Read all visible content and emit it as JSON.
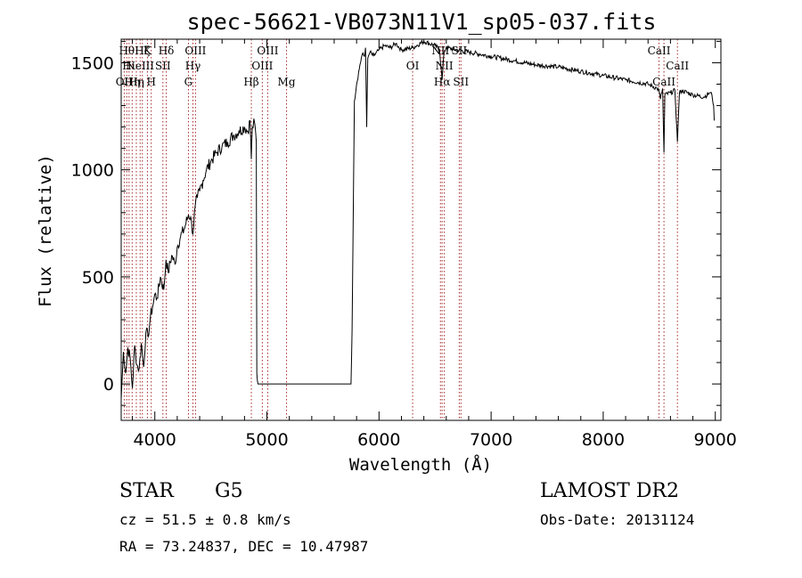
{
  "chart_data": {
    "type": "line",
    "title": "spec-56621-VB073N11V1_sp05-037.fits",
    "xlabel": "Wavelength (Å)",
    "ylabel": "Flux (relative)",
    "xlim": [
      3700,
      9050
    ],
    "ylim": [
      -170,
      1610
    ],
    "xticks": [
      4000,
      5000,
      6000,
      7000,
      8000,
      9000
    ],
    "yticks": [
      0,
      500,
      1000,
      1500
    ],
    "grid": false,
    "series": [
      {
        "color": "#000000",
        "x": [
          3700,
          3720,
          3740,
          3760,
          3780,
          3800,
          3820,
          3840,
          3860,
          3880,
          3900,
          3920,
          3940,
          3960,
          3980,
          4000,
          4020,
          4050,
          4080,
          4100,
          4120,
          4150,
          4180,
          4200,
          4230,
          4260,
          4300,
          4320,
          4340,
          4360,
          4380,
          4400,
          4430,
          4460,
          4500,
          4550,
          4600,
          4650,
          4700,
          4750,
          4800,
          4830,
          4850,
          4861,
          4870,
          4890,
          4905,
          4910,
          4920,
          4960,
          5200,
          5500,
          5750,
          5760,
          5780,
          5800,
          5830,
          5850,
          5870,
          5880,
          5890,
          5900,
          5920,
          5950,
          6000,
          6050,
          6100,
          6150,
          6200,
          6300,
          6400,
          6500,
          6540,
          6563,
          6580,
          6600,
          6700,
          6800,
          6900,
          7000,
          7200,
          7400,
          7600,
          7800,
          8000,
          8200,
          8400,
          8480,
          8498,
          8510,
          8530,
          8542,
          8550,
          8600,
          8640,
          8662,
          8680,
          8700,
          8800,
          8900,
          8950,
          8970,
          8985,
          8990
        ],
        "y": [
          -70,
          150,
          50,
          170,
          120,
          -20,
          180,
          90,
          70,
          190,
          80,
          240,
          220,
          310,
          360,
          420,
          400,
          500,
          440,
          580,
          520,
          600,
          560,
          640,
          690,
          720,
          790,
          780,
          700,
          830,
          870,
          900,
          950,
          1000,
          1040,
          1080,
          1110,
          1130,
          1160,
          1180,
          1200,
          1180,
          1230,
          1050,
          1200,
          1220,
          1130,
          50,
          0,
          0,
          0,
          0,
          0,
          250,
          1320,
          1400,
          1490,
          1540,
          1530,
          1570,
          1200,
          1520,
          1550,
          1530,
          1560,
          1580,
          1570,
          1590,
          1560,
          1570,
          1600,
          1580,
          1560,
          1420,
          1550,
          1570,
          1560,
          1550,
          1540,
          1530,
          1510,
          1490,
          1480,
          1460,
          1440,
          1420,
          1400,
          1380,
          1370,
          1330,
          1380,
          1080,
          1350,
          1360,
          1370,
          1130,
          1360,
          1370,
          1350,
          1340,
          1360,
          1350,
          1300,
          1230
        ]
      }
    ],
    "lines": [
      {
        "x": 3727,
        "labels": [
          "OII"
        ],
        "rows": [
          2
        ]
      },
      {
        "x": 3750,
        "labels": [
          "Hθ"
        ],
        "rows": [
          0
        ]
      },
      {
        "x": 3770,
        "labels": [
          "Hι"
        ],
        "rows": [
          1
        ]
      },
      {
        "x": 3798,
        "labels": [
          "Hη"
        ],
        "rows": [
          2
        ]
      },
      {
        "x": 3835,
        "labels": [
          "Hη"
        ],
        "rows": [
          2
        ]
      },
      {
        "x": 3869,
        "labels": [
          "NeIII"
        ],
        "rows": [
          1
        ]
      },
      {
        "x": 3889,
        "labels": [
          "Hζ"
        ],
        "rows": [
          0
        ]
      },
      {
        "x": 3934,
        "labels": [
          "K"
        ],
        "rows": [
          0
        ]
      },
      {
        "x": 3968,
        "labels": [
          "H"
        ],
        "rows": [
          2
        ]
      },
      {
        "x": 4072,
        "labels": [
          "SII"
        ],
        "rows": [
          1
        ]
      },
      {
        "x": 4102,
        "labels": [
          "Hδ"
        ],
        "rows": [
          0
        ]
      },
      {
        "x": 4300,
        "labels": [
          "G"
        ],
        "rows": [
          2
        ]
      },
      {
        "x": 4340,
        "labels": [
          "Hγ"
        ],
        "rows": [
          1
        ]
      },
      {
        "x": 4363,
        "labels": [
          "OIII"
        ],
        "rows": [
          0
        ]
      },
      {
        "x": 4861,
        "labels": [
          "Hβ"
        ],
        "rows": [
          2
        ]
      },
      {
        "x": 4959,
        "labels": [
          "OIII"
        ],
        "rows": [
          1
        ]
      },
      {
        "x": 5007,
        "labels": [
          "OIII"
        ],
        "rows": [
          0
        ]
      },
      {
        "x": 5175,
        "labels": [
          "Mg"
        ],
        "rows": [
          2
        ]
      },
      {
        "x": 6300,
        "labels": [
          "OI"
        ],
        "rows": [
          1
        ]
      },
      {
        "x": 6548,
        "labels": [
          "NII"
        ],
        "rows": [
          0
        ]
      },
      {
        "x": 6563,
        "labels": [
          "Hα"
        ],
        "rows": [
          2
        ]
      },
      {
        "x": 6583,
        "labels": [
          "NII"
        ],
        "rows": [
          1
        ]
      },
      {
        "x": 6716,
        "labels": [
          "SII"
        ],
        "rows": [
          0
        ]
      },
      {
        "x": 6731,
        "labels": [
          "SII"
        ],
        "rows": [
          2
        ]
      },
      {
        "x": 8498,
        "labels": [
          "CaII"
        ],
        "rows": [
          0
        ]
      },
      {
        "x": 8542,
        "labels": [
          "CaII"
        ],
        "rows": [
          2
        ]
      },
      {
        "x": 8662,
        "labels": [
          "CaII"
        ],
        "rows": [
          1
        ]
      }
    ]
  },
  "footer": {
    "object_class": "STAR",
    "subclass": "G5",
    "survey": "LAMOST DR2",
    "cz": "cz = 51.5 ± 0.8 km/s",
    "obs_date": "Obs-Date: 20131124",
    "coords": "RA =  73.24837, DEC =  10.47987"
  }
}
